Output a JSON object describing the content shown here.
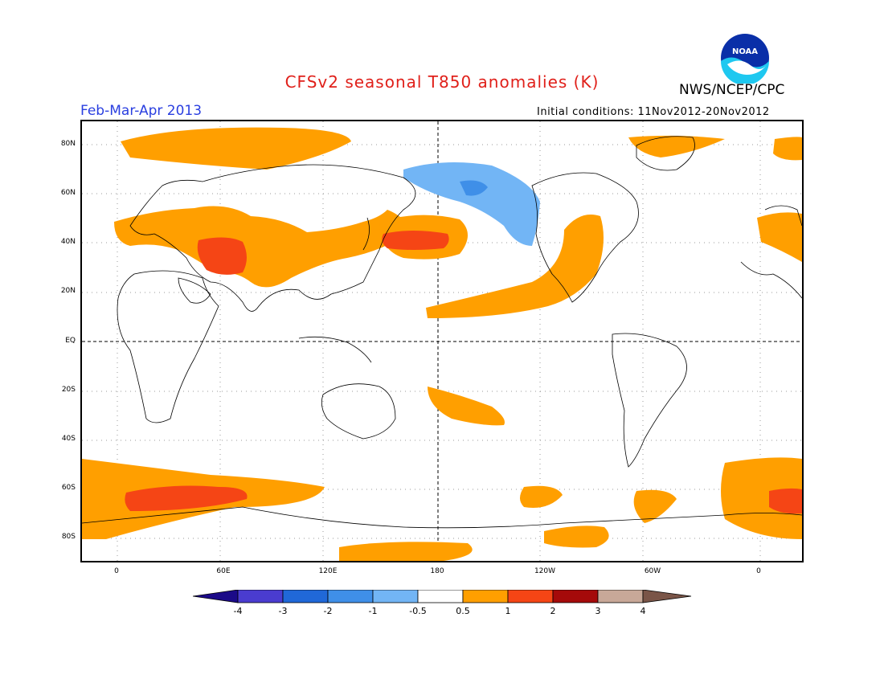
{
  "header": {
    "title": "CFSv2 seasonal T850 anomalies (K)",
    "season": "Feb-Mar-Apr 2013",
    "agency": "NWS/NCEP/CPC",
    "initial_conditions": "Initial conditions: 11Nov2012-20Nov2012",
    "logo_text": "NOAA"
  },
  "map": {
    "lat_labels": [
      "80N",
      "60N",
      "40N",
      "20N",
      "EQ",
      "20S",
      "40S",
      "60S",
      "80S"
    ],
    "lon_labels": [
      "0",
      "60E",
      "120E",
      "180",
      "120W",
      "60W",
      "0"
    ],
    "colors": {
      "ocean_land": "#ffffff",
      "coast": "#000000",
      "pos_0_5_1": "#ff9f00",
      "pos_1_2": "#f54515",
      "neg_0_5_1": "#72b5f5",
      "neg_1_2": "#3f8fe8"
    }
  },
  "colorbar": {
    "labels": [
      "-4",
      "-3",
      "-2",
      "-1",
      "-0.5",
      "0.5",
      "1",
      "2",
      "3",
      "4"
    ],
    "colors": [
      "#1b0a88",
      "#4a3ccf",
      "#2068d8",
      "#3f8fe8",
      "#72b5f5",
      "#ffffff",
      "#ff9f00",
      "#f54515",
      "#a50a0a",
      "#c8a898",
      "#7a5548"
    ]
  }
}
